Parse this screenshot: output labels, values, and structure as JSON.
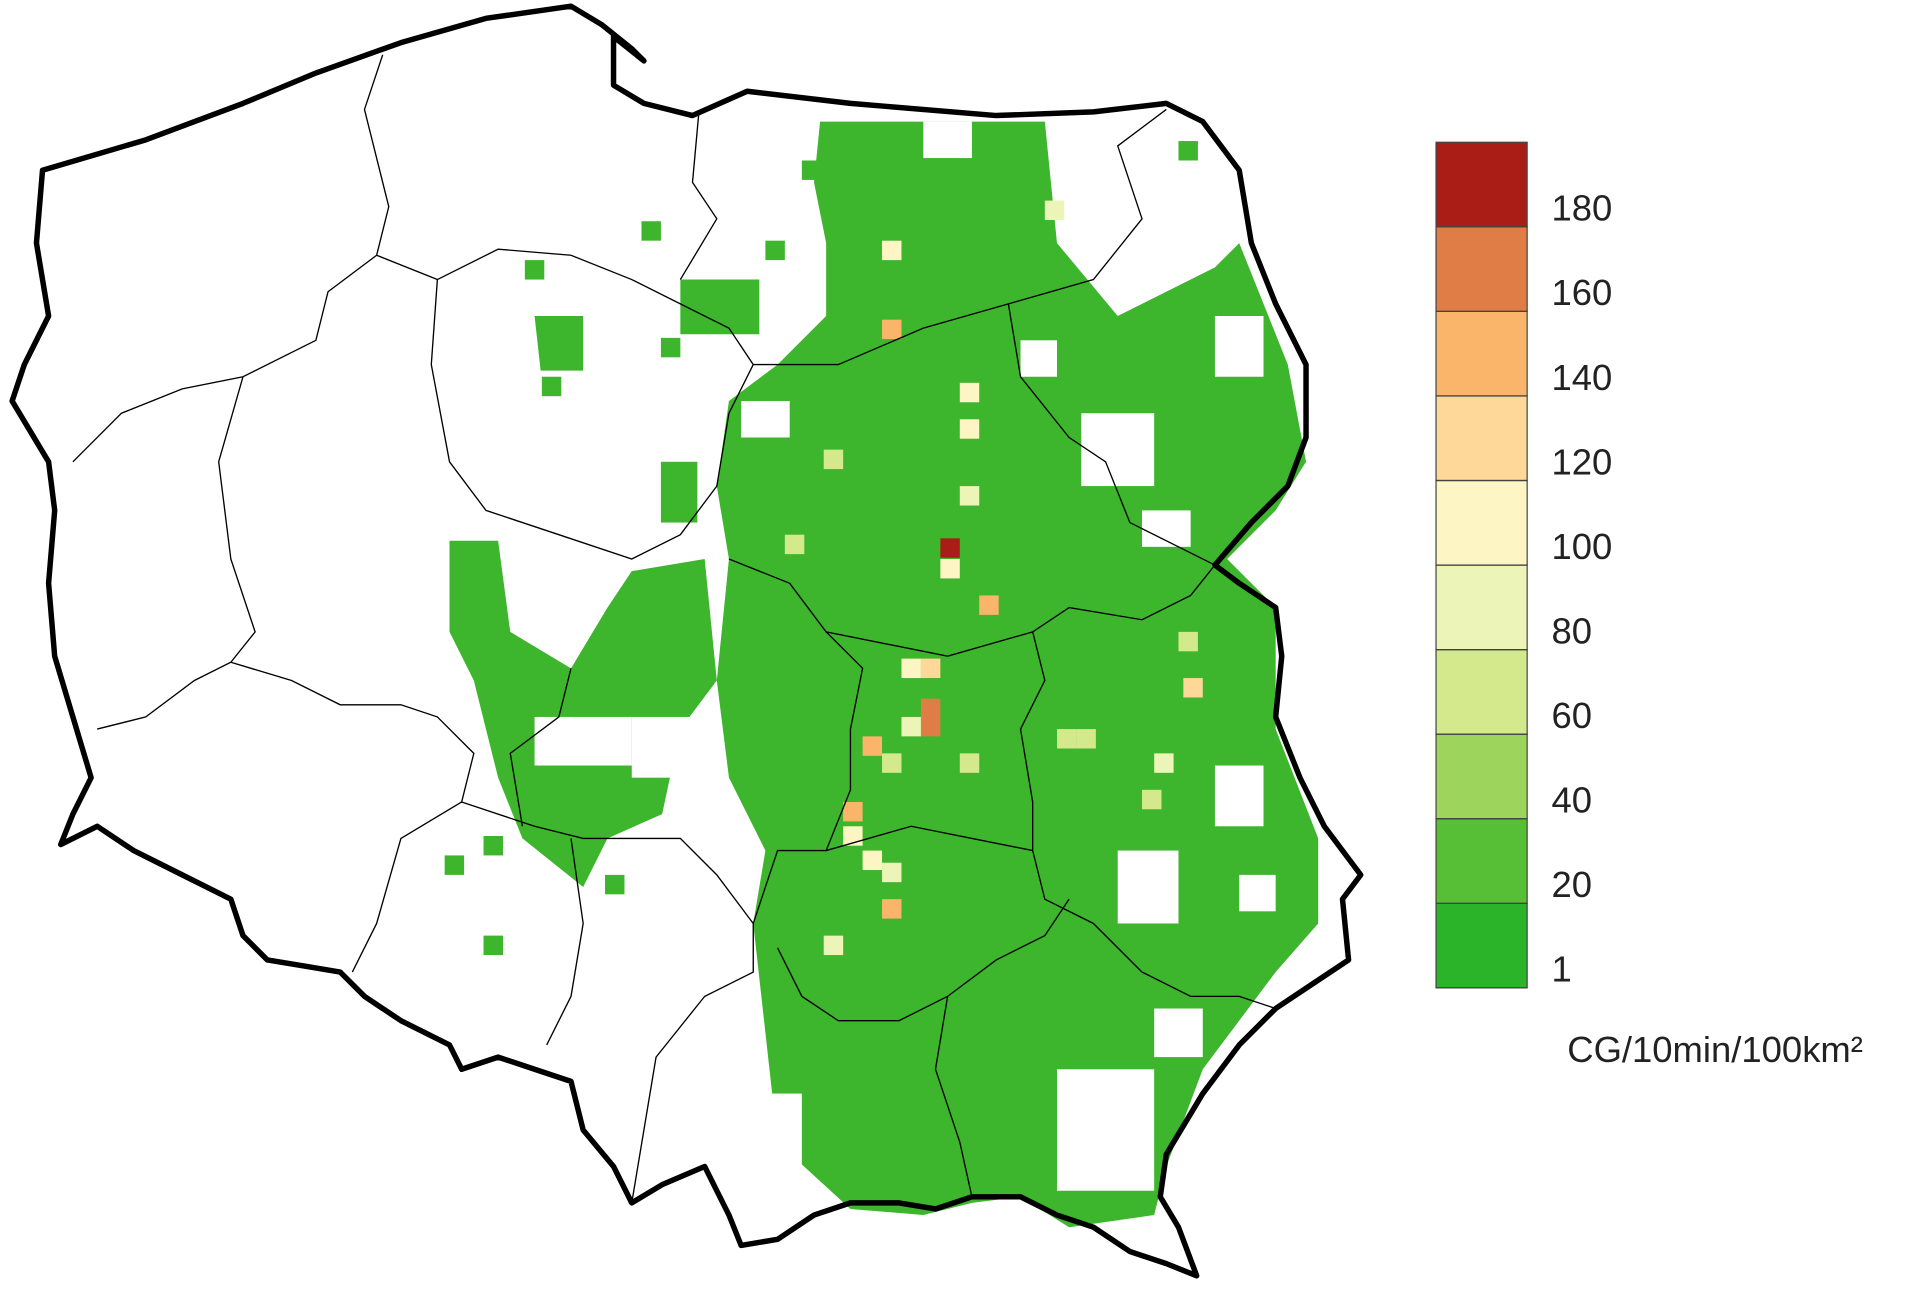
{
  "legend": {
    "ticks": [
      1,
      20,
      40,
      60,
      80,
      100,
      120,
      140,
      160,
      180
    ],
    "colors": [
      "#2bb32a",
      "#56bf35",
      "#9cd45c",
      "#d3e98c",
      "#edf4b8",
      "#fdf6c4",
      "#fdd898",
      "#fbb56a",
      "#e07d47",
      "#aa1d16"
    ],
    "unit": "CG/10min/100km²"
  },
  "cells": {
    "values": [
      185,
      170,
      165,
      150,
      150,
      145,
      150,
      135,
      140,
      125,
      110,
      105,
      100,
      110,
      100,
      105,
      95,
      105,
      95,
      90,
      85,
      90,
      85,
      75,
      70,
      70,
      65,
      75,
      75,
      70,
      75
    ]
  }
}
